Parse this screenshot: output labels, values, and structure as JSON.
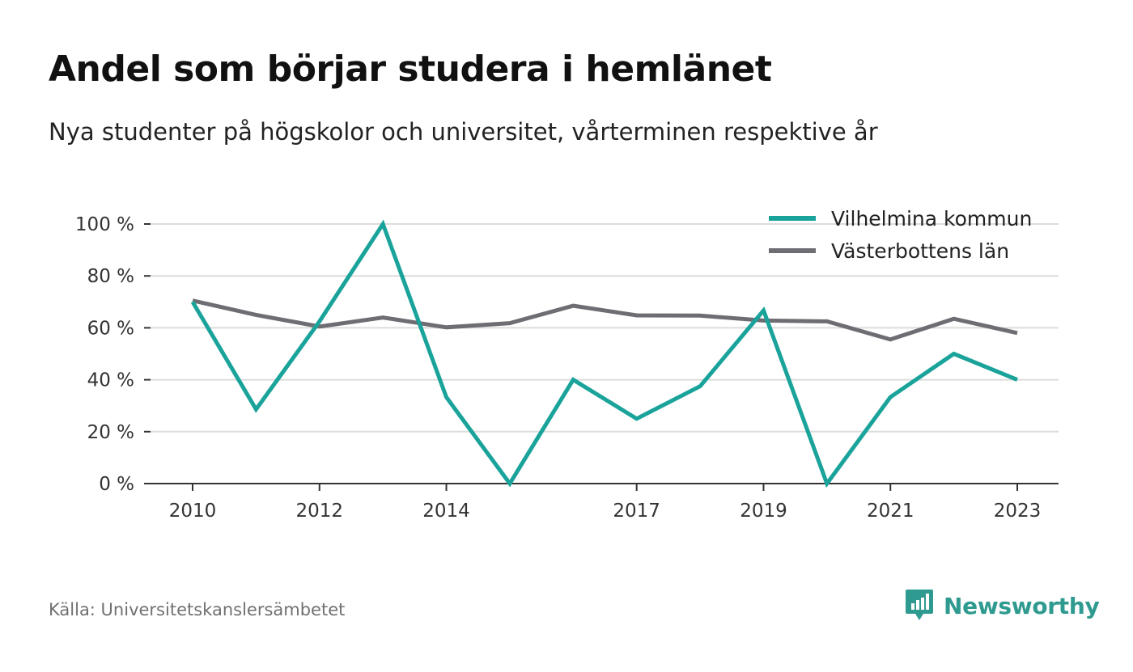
{
  "header": {
    "title": "Andel som börjar studera i hemlänet",
    "subtitle": "Nya studenter på högskolor och universitet, vårterminen respektive år"
  },
  "chart_data": {
    "type": "line",
    "title": "Andel som börjar studera i hemlänet",
    "subtitle": "Nya studenter på högskolor och universitet, vårterminen respektive år",
    "xlabel": "",
    "ylabel": "",
    "x": [
      2010,
      2011,
      2012,
      2013,
      2014,
      2015,
      2016,
      2017,
      2018,
      2019,
      2020,
      2021,
      2022,
      2023
    ],
    "x_ticks": [
      2010,
      2012,
      2014,
      2017,
      2019,
      2021,
      2023
    ],
    "x_tick_labels": [
      "2010",
      "2012",
      "2014",
      "2017",
      "2019",
      "2021",
      "2023"
    ],
    "ylim": [
      0,
      100
    ],
    "y_ticks": [
      0,
      20,
      40,
      60,
      80,
      100
    ],
    "y_tick_labels": [
      "0 %",
      "20 %",
      "40 %",
      "60 %",
      "80 %",
      "100 %"
    ],
    "grid": true,
    "legend_position": "top-right",
    "series": [
      {
        "name": "Vilhelmina kommun",
        "color": "#1aa39a",
        "values": [
          70,
          28.6,
          62.5,
          100,
          33.3,
          0,
          40,
          25,
          37.5,
          66.7,
          0,
          33.3,
          50,
          40
        ]
      },
      {
        "name": "Västerbottens län",
        "color": "#6e6d73",
        "values": [
          70.5,
          65,
          60.5,
          64,
          60.2,
          61.8,
          68.5,
          64.8,
          64.7,
          62.8,
          62.5,
          55.5,
          63.5,
          58
        ]
      }
    ]
  },
  "footer": {
    "source": "Källa: Universitetskanslersämbetet",
    "brand": "Newsworthy",
    "brand_logo_icon": "newsworthy-logo-icon",
    "brand_color": "#2f9a8f"
  }
}
